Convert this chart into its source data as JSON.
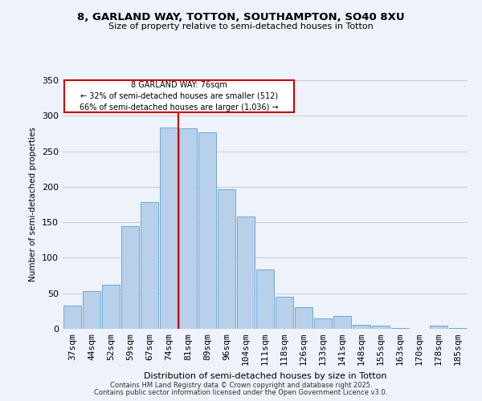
{
  "title_line1": "8, GARLAND WAY, TOTTON, SOUTHAMPTON, SO40 8XU",
  "title_line2": "Size of property relative to semi-detached houses in Totton",
  "xlabel": "Distribution of semi-detached houses by size in Totton",
  "ylabel": "Number of semi-detached properties",
  "categories": [
    "37sqm",
    "44sqm",
    "52sqm",
    "59sqm",
    "67sqm",
    "74sqm",
    "81sqm",
    "89sqm",
    "96sqm",
    "104sqm",
    "111sqm",
    "118sqm",
    "126sqm",
    "133sqm",
    "141sqm",
    "148sqm",
    "155sqm",
    "163sqm",
    "170sqm",
    "178sqm",
    "185sqm"
  ],
  "values": [
    33,
    53,
    62,
    145,
    178,
    283,
    282,
    277,
    196,
    158,
    84,
    45,
    31,
    15,
    18,
    6,
    5,
    1,
    0,
    5,
    1
  ],
  "bar_color": "#b8d0ea",
  "bar_edge_color": "#6aaad4",
  "grid_color": "#c8c8c8",
  "background_color": "#eef2fb",
  "vline_index": 5,
  "vline_color": "#cc0000",
  "annotation_line1": "8 GARLAND WAY: 76sqm",
  "annotation_line2": "← 32% of semi-detached houses are smaller (512)",
  "annotation_line3": "66% of semi-detached houses are larger (1,036) →",
  "ylim": [
    0,
    350
  ],
  "yticks": [
    0,
    50,
    100,
    150,
    200,
    250,
    300,
    350
  ],
  "footnote1": "Contains HM Land Registry data © Crown copyright and database right 2025.",
  "footnote2": "Contains public sector information licensed under the Open Government Licence v3.0."
}
